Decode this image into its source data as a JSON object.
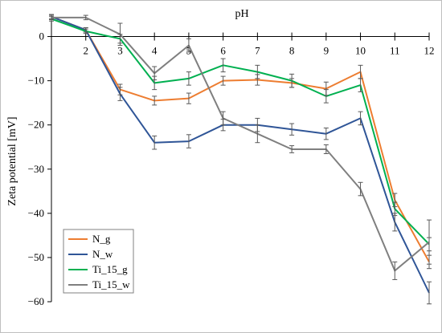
{
  "chart_data": {
    "type": "line",
    "xlabel": "pH",
    "ylabel": "Zeta potential [mV]",
    "xlim": [
      1,
      12
    ],
    "ylim": [
      -60,
      0
    ],
    "y_axis_min": -60,
    "y_axis_max": 5,
    "x_ticks": [
      2,
      3,
      4,
      5,
      6,
      7,
      8,
      9,
      10,
      11,
      12
    ],
    "y_ticks": [
      0,
      -10,
      -20,
      -30,
      -40,
      -50,
      -60
    ],
    "legend_position": "bottom-left",
    "grid": false,
    "series": [
      {
        "name": "N_g",
        "color": "#ed7d31",
        "x": [
          1,
          2,
          3,
          4,
          5,
          6,
          7,
          8,
          9,
          10,
          11,
          12
        ],
        "values": [
          4.5,
          1.5,
          -12,
          -14.5,
          -14,
          -10,
          -9.8,
          -10.5,
          -11.8,
          -8,
          -37,
          -51
        ],
        "errors": [
          0.5,
          0.5,
          1.2,
          1.0,
          1.2,
          1.0,
          1.2,
          1.0,
          1.5,
          1.5,
          1.5,
          1.5
        ]
      },
      {
        "name": "N_w",
        "color": "#2f5597",
        "x": [
          1,
          2,
          3,
          4,
          5,
          6,
          7,
          8,
          9,
          10,
          11,
          12
        ],
        "values": [
          4.5,
          1.5,
          -13,
          -24,
          -23.7,
          -20,
          -20,
          -21,
          -22,
          -18.5,
          -42,
          -58
        ],
        "errors": [
          0.5,
          0.5,
          1.5,
          1.5,
          1.5,
          1.3,
          1.5,
          1.3,
          1.3,
          1.5,
          2.0,
          2.5
        ]
      },
      {
        "name": "Ti_15_g",
        "color": "#00b050",
        "x": [
          1,
          2,
          3,
          4,
          5,
          6,
          7,
          8,
          9,
          10,
          11,
          12
        ],
        "values": [
          4.0,
          1.2,
          -0.5,
          -10.5,
          -9.5,
          -6.5,
          -8.0,
          -10.0,
          -13.5,
          -11.0,
          -39.0,
          -47.0
        ],
        "errors": [
          0.5,
          0.5,
          1.0,
          1.5,
          1.5,
          1.5,
          1.5,
          1.5,
          1.5,
          1.5,
          1.5,
          1.5
        ]
      },
      {
        "name": "Ti_15_w",
        "color": "#7f7f7f",
        "x": [
          1,
          2,
          3,
          4,
          5,
          6,
          7,
          8,
          9,
          10,
          11,
          12
        ],
        "values": [
          4.3,
          4.3,
          0.5,
          -8.3,
          -2.0,
          -18.5,
          -22.0,
          -25.5,
          -25.5,
          -34.5,
          -53.0,
          -46.5
        ],
        "errors": [
          0.5,
          0.5,
          2.5,
          1.5,
          1.5,
          1.5,
          2.0,
          0.8,
          1.0,
          1.5,
          2.0,
          5.0
        ]
      }
    ]
  }
}
